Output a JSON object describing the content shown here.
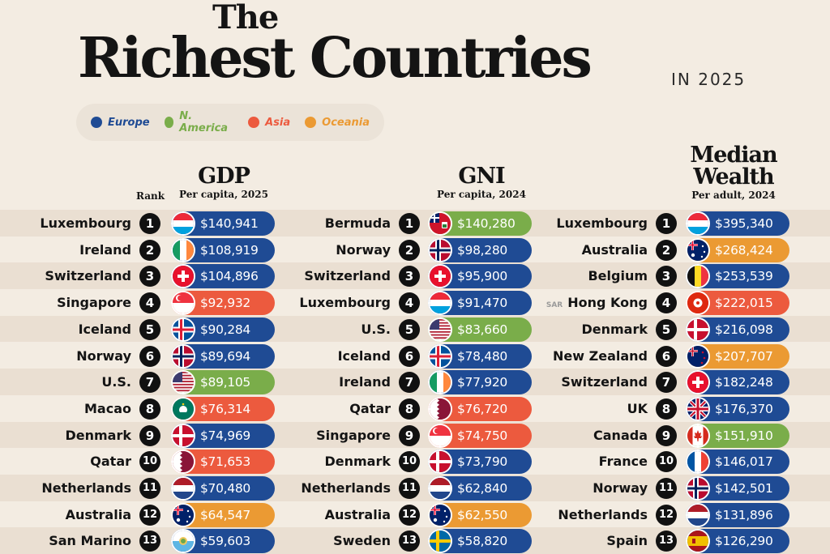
{
  "title": {
    "the": "The",
    "main": "Richest Countries",
    "year": "IN 2025"
  },
  "legend": [
    {
      "label": "Europe",
      "color": "#1f4b94"
    },
    {
      "label": "N. America",
      "color": "#7aad4a"
    },
    {
      "label": "Asia",
      "color": "#ec5a3e"
    },
    {
      "label": "Oceania",
      "color": "#eb9a33"
    }
  ],
  "region_colors": {
    "Europe": "#1f4b94",
    "N. America": "#7aad4a",
    "Asia": "#ec5a3e",
    "Oceania": "#eb9a33"
  },
  "rank_header": "Rank",
  "chart_data": [
    {
      "type": "table",
      "title": "GDP",
      "subtitle": "Per capita, 2025",
      "rows": [
        {
          "rank": "1",
          "country": "Luxembourg",
          "value": "$140,941",
          "region": "Europe",
          "flag": "luxembourg-flag-icon"
        },
        {
          "rank": "2",
          "country": "Ireland",
          "value": "$108,919",
          "region": "Europe",
          "flag": "ireland-flag-icon"
        },
        {
          "rank": "3",
          "country": "Switzerland",
          "value": "$104,896",
          "region": "Europe",
          "flag": "switzerland-flag-icon"
        },
        {
          "rank": "4",
          "country": "Singapore",
          "value": "$92,932",
          "region": "Asia",
          "flag": "singapore-flag-icon"
        },
        {
          "rank": "5",
          "country": "Iceland",
          "value": "$90,284",
          "region": "Europe",
          "flag": "iceland-flag-icon"
        },
        {
          "rank": "6",
          "country": "Norway",
          "value": "$89,694",
          "region": "Europe",
          "flag": "norway-flag-icon"
        },
        {
          "rank": "7",
          "country": "U.S.",
          "value": "$89,105",
          "region": "N. America",
          "flag": "us-flag-icon"
        },
        {
          "rank": "8",
          "country": "Macao",
          "value": "$76,314",
          "region": "Asia",
          "flag": "macao-flag-icon"
        },
        {
          "rank": "9",
          "country": "Denmark",
          "value": "$74,969",
          "region": "Europe",
          "flag": "denmark-flag-icon"
        },
        {
          "rank": "10",
          "country": "Qatar",
          "value": "$71,653",
          "region": "Asia",
          "flag": "qatar-flag-icon"
        },
        {
          "rank": "11",
          "country": "Netherlands",
          "value": "$70,480",
          "region": "Europe",
          "flag": "netherlands-flag-icon"
        },
        {
          "rank": "12",
          "country": "Australia",
          "value": "$64,547",
          "region": "Oceania",
          "flag": "australia-flag-icon"
        },
        {
          "rank": "13",
          "country": "San Marino",
          "value": "$59,603",
          "region": "Europe",
          "flag": "san-marino-flag-icon"
        }
      ]
    },
    {
      "type": "table",
      "title": "GNI",
      "subtitle": "Per capita, 2024",
      "rows": [
        {
          "rank": "1",
          "country": "Bermuda",
          "value": "$140,280",
          "region": "N. America",
          "flag": "bermuda-flag-icon"
        },
        {
          "rank": "2",
          "country": "Norway",
          "value": "$98,280",
          "region": "Europe",
          "flag": "norway-flag-icon"
        },
        {
          "rank": "3",
          "country": "Switzerland",
          "value": "$95,900",
          "region": "Europe",
          "flag": "switzerland-flag-icon"
        },
        {
          "rank": "4",
          "country": "Luxembourg",
          "value": "$91,470",
          "region": "Europe",
          "flag": "luxembourg-flag-icon"
        },
        {
          "rank": "5",
          "country": "U.S.",
          "value": "$83,660",
          "region": "N. America",
          "flag": "us-flag-icon"
        },
        {
          "rank": "6",
          "country": "Iceland",
          "value": "$78,480",
          "region": "Europe",
          "flag": "iceland-flag-icon"
        },
        {
          "rank": "7",
          "country": "Ireland",
          "value": "$77,920",
          "region": "Europe",
          "flag": "ireland-flag-icon"
        },
        {
          "rank": "8",
          "country": "Qatar",
          "value": "$76,720",
          "region": "Asia",
          "flag": "qatar-flag-icon"
        },
        {
          "rank": "9",
          "country": "Singapore",
          "value": "$74,750",
          "region": "Asia",
          "flag": "singapore-flag-icon"
        },
        {
          "rank": "10",
          "country": "Denmark",
          "value": "$73,790",
          "region": "Europe",
          "flag": "denmark-flag-icon"
        },
        {
          "rank": "11",
          "country": "Netherlands",
          "value": "$62,840",
          "region": "Europe",
          "flag": "netherlands-flag-icon"
        },
        {
          "rank": "12",
          "country": "Australia",
          "value": "$62,550",
          "region": "Oceania",
          "flag": "australia-flag-icon"
        },
        {
          "rank": "13",
          "country": "Sweden",
          "value": "$58,820",
          "region": "Europe",
          "flag": "sweden-flag-icon"
        }
      ]
    },
    {
      "type": "table",
      "title": "Median Wealth",
      "subtitle": "Per adult, 2024",
      "rows": [
        {
          "rank": "1",
          "country": "Luxembourg",
          "value": "$395,340",
          "region": "Europe",
          "flag": "luxembourg-flag-icon"
        },
        {
          "rank": "2",
          "country": "Australia",
          "value": "$268,424",
          "region": "Oceania",
          "flag": "australia-flag-icon"
        },
        {
          "rank": "3",
          "country": "Belgium",
          "value": "$253,539",
          "region": "Europe",
          "flag": "belgium-flag-icon"
        },
        {
          "rank": "4",
          "country": "Hong Kong",
          "prefix": "SAR",
          "value": "$222,015",
          "region": "Asia",
          "flag": "hong-kong-flag-icon"
        },
        {
          "rank": "5",
          "country": "Denmark",
          "value": "$216,098",
          "region": "Europe",
          "flag": "denmark-flag-icon"
        },
        {
          "rank": "6",
          "country": "New Zealand",
          "value": "$207,707",
          "region": "Oceania",
          "flag": "new-zealand-flag-icon"
        },
        {
          "rank": "7",
          "country": "Switzerland",
          "value": "$182,248",
          "region": "Europe",
          "flag": "switzerland-flag-icon"
        },
        {
          "rank": "8",
          "country": "UK",
          "value": "$176,370",
          "region": "Europe",
          "flag": "uk-flag-icon"
        },
        {
          "rank": "9",
          "country": "Canada",
          "value": "$151,910",
          "region": "N. America",
          "flag": "canada-flag-icon"
        },
        {
          "rank": "10",
          "country": "France",
          "value": "$146,017",
          "region": "Europe",
          "flag": "france-flag-icon"
        },
        {
          "rank": "11",
          "country": "Norway",
          "value": "$142,501",
          "region": "Europe",
          "flag": "norway-flag-icon"
        },
        {
          "rank": "12",
          "country": "Netherlands",
          "value": "$131,896",
          "region": "Europe",
          "flag": "netherlands-flag-icon"
        },
        {
          "rank": "13",
          "country": "Spain",
          "value": "$126,290",
          "region": "Europe",
          "flag": "spain-flag-icon"
        }
      ]
    }
  ]
}
